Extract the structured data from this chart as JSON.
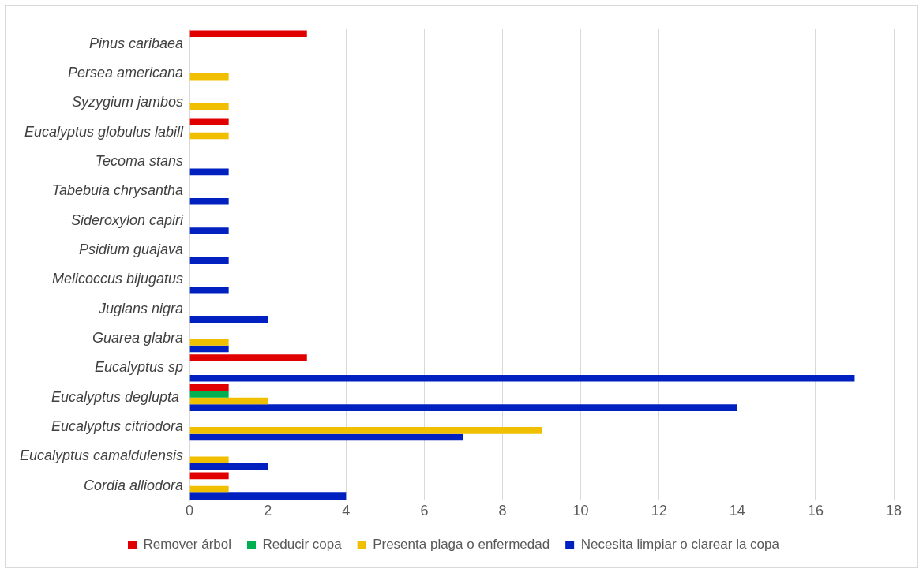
{
  "chart_data": {
    "type": "bar",
    "orientation": "horizontal",
    "categories": [
      "Pinus caribaea",
      "Persea americana",
      "Syzygium jambos",
      "Eucalyptus globulus labill",
      "Tecoma stans",
      "Tabebuia chrysantha",
      "Sideroxylon capiri",
      "Psidium guajava",
      "Melicoccus bijugatus",
      "Juglans nigra",
      "Guarea glabra",
      "Eucalyptus sp",
      "Eucalyptus deglupta ",
      "Eucalyptus citriodora",
      "Eucalyptus camaldulensis",
      "Cordia alliodora"
    ],
    "series": [
      {
        "name": "Remover árbol",
        "color": "#e00000",
        "values": [
          3,
          null,
          null,
          1,
          null,
          null,
          null,
          null,
          null,
          null,
          null,
          3,
          1,
          null,
          null,
          1
        ]
      },
      {
        "name": "Reducir copa",
        "color": "#00b050",
        "values": [
          null,
          null,
          null,
          null,
          null,
          null,
          null,
          null,
          null,
          null,
          null,
          null,
          1,
          null,
          null,
          null
        ]
      },
      {
        "name": "Presenta plaga o enfermedad",
        "color": "#f0c000",
        "values": [
          null,
          1,
          1,
          1,
          null,
          null,
          null,
          null,
          null,
          null,
          1,
          null,
          2,
          9,
          1,
          1
        ]
      },
      {
        "name": "Necesita limpiar o clarear la copa",
        "color": "#0020c0",
        "values": [
          null,
          null,
          null,
          null,
          1,
          1,
          1,
          1,
          1,
          2,
          1,
          17,
          14,
          7,
          2,
          4
        ]
      }
    ],
    "xlim": [
      0,
      18
    ],
    "xticks": [
      0,
      2,
      4,
      6,
      8,
      10,
      12,
      14,
      16,
      18
    ],
    "grid": "x",
    "legend": "bottom"
  }
}
